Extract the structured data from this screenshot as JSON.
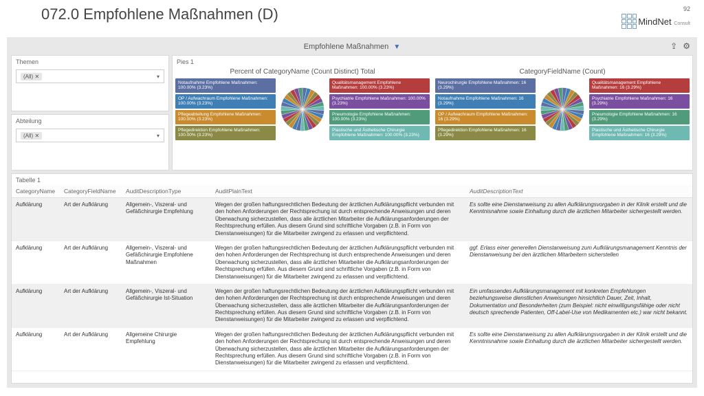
{
  "header": {
    "title": "072.0 Empfohlene Maßnahmen (D)",
    "page_number": "92",
    "logo_text": "MindNet",
    "logo_sub": "Consult"
  },
  "report": {
    "title": "Empfohlene Maßnahmen",
    "filters": {
      "themen_label": "Themen",
      "themen_value": "(All) ✕",
      "abteilung_label": "Abteilung",
      "abteilung_value": "(All) ✕"
    },
    "pies": {
      "panel_title": "Pies 1",
      "left_title": "Percent of CategoryName (Count Distinct) Total",
      "right_title": "CategoryFieldName (Count)",
      "slice_colors": [
        "#5b6fa3",
        "#3f7fb5",
        "#c98b2e",
        "#8a8a46",
        "#b53d3d",
        "#7a4fa0",
        "#4f9b7a",
        "#6fb9b3",
        "#5b6fa3",
        "#3f7fb5",
        "#c98b2e",
        "#8a8a46",
        "#b53d3d",
        "#7a4fa0",
        "#4f9b7a",
        "#6fb9b3",
        "#5b6fa3",
        "#3f7fb5",
        "#c98b2e",
        "#8a8a46",
        "#b53d3d",
        "#7a4fa0",
        "#4f9b7a",
        "#6fb9b3",
        "#5b6fa3",
        "#3f7fb5",
        "#c98b2e",
        "#8a8a46",
        "#b53d3d",
        "#7a4fa0",
        "#4f9b7a"
      ],
      "left_legend_left": [
        {
          "color": "#5b6fa3",
          "text": "Notaufnahme Empfohlene Maßnahmen: 100.00% (3.23%)"
        },
        {
          "color": "#3f7fb5",
          "text": "OP / Aufwachraum Empfohlene Maßnahmen: 100.00% (3.23%)"
        },
        {
          "color": "#c98b2e",
          "text": "Pflegeabteilung Empfohlene Maßnahmen: 100.00% (3.23%)"
        },
        {
          "color": "#8a8a46",
          "text": "Pflegedirektion Empfohlene Maßnahmen: 100.00% (3.23%)"
        }
      ],
      "left_legend_right": [
        {
          "color": "#b53d3d",
          "text": "Qualitätsmanagement Empfohlene Maßnahmen: 100.00% (3.23%)"
        },
        {
          "color": "#7a4fa0",
          "text": "Psychiatrie Empfohlene Maßnahmen: 100.00% (3.23%)"
        },
        {
          "color": "#4f9b7a",
          "text": "Pneumologie Empfohlene Maßnahmen: 100.00% (3.23%)"
        },
        {
          "color": "#6fb9b3",
          "text": "Plastische und Ästhetische Chirurgie Empfohlene Maßnahmen: 100.00% (3.23%)"
        }
      ],
      "right_legend_left": [
        {
          "color": "#5b6fa3",
          "text": "Neurochirurgie Empfohlene Maßnahmen: 16 (3.29%)"
        },
        {
          "color": "#3f7fb5",
          "text": "Notaufnahme Empfohlene Maßnahmen: 16 (3.29%)"
        },
        {
          "color": "#c98b2e",
          "text": "OP / Aufwachraum Empfohlene Maßnahmen: 16 (3.29%)"
        },
        {
          "color": "#8a8a46",
          "text": "Pflegedirektion Empfohlene Maßnahmen: 16 (3.29%)"
        }
      ],
      "right_legend_right": [
        {
          "color": "#b53d3d",
          "text": "Qualitätsmanagement Empfohlene Maßnahmen: 16 (3.29%)"
        },
        {
          "color": "#7a4fa0",
          "text": "Psychiatrie Empfohlene Maßnahmen: 16 (3.29%)"
        },
        {
          "color": "#4f9b7a",
          "text": "Pneumologie Empfohlene Maßnahmen: 16 (3.29%)"
        },
        {
          "color": "#6fb9b3",
          "text": "Plastische und Ästhetische Chirurgie Empfohlene Maßnahmen: 16 (3.29%)"
        }
      ]
    },
    "table": {
      "panel_title": "Tabelle 1",
      "columns": [
        "CategoryName",
        "CategoryFieldName",
        "AuditDescriptionType",
        "AuditPlainText",
        "AuditDescriptionText"
      ],
      "rows": [
        {
          "alt": true,
          "cat": "Aufklärung",
          "field": "Art der Aufklärung",
          "type": "Allgemein-, Viszeral- und Gefäßchirurgie Empfehlung",
          "plain": "Wegen der großen haftungsrechtlichen Bedeutung der ärztlichen Aufklärungspflicht verbunden mit den hohen Anforderungen der Rechtsprechung ist durch entsprechende Anweisungen und deren Überwachung sicherzustellen, dass alle ärztlichen Mitarbeiter die Aufklärungsanforderungen der Rechtsprechung erfüllen. Aus diesem Grund sind schriftliche Vorgaben (z.B. in Form von Dienstanweisungen) für die Mitarbeiter zwingend zu erlassen und verpflichtend.",
          "desc": "Es sollte eine Dienstanweisung zu allen Aufklärungsvorgaben in der Klinik erstellt und die Kenntnisnahme sowie Einhaltung durch die ärztlichen Mitarbeiter sichergestellt werden."
        },
        {
          "alt": false,
          "cat": "Aufklärung",
          "field": "Art der Aufklärung",
          "type": "Allgemein-, Viszeral- und Gefäßchirurgie Empfohlene Maßnahmen",
          "plain": "Wegen der großen haftungsrechtlichen Bedeutung der ärztlichen Aufklärungspflicht verbunden mit den hohen Anforderungen der Rechtsprechung ist durch entsprechende Anweisungen und deren Überwachung sicherzustellen, dass alle ärztlichen Mitarbeiter die Aufklärungsanforderungen der Rechtsprechung erfüllen. Aus diesem Grund sind schriftliche Vorgaben (z.B. in Form von Dienstanweisungen) für die Mitarbeiter zwingend zu erlassen und verpflichtend.",
          "desc": "ggf. Erlass einer generellen Dienstanweisung zum Aufklärungsmanagement Kenntnis der Dienstanweisung bei den ärztlichen Mitarbeitern sicherstellen"
        },
        {
          "alt": true,
          "cat": "Aufklärung",
          "field": "Art der Aufklärung",
          "type": "Allgemein-, Viszeral- und Gefäßchirurgie Ist-Situation",
          "plain": "Wegen der großen haftungsrechtlichen Bedeutung der ärztlichen Aufklärungspflicht verbunden mit den hohen Anforderungen der Rechtsprechung ist durch entsprechende Anweisungen und deren Überwachung sicherzustellen, dass alle ärztlichen Mitarbeiter die Aufklärungsanforderungen der Rechtsprechung erfüllen. Aus diesem Grund sind schriftliche Vorgaben (z.B. in Form von Dienstanweisungen) für die Mitarbeiter zwingend zu erlassen und verpflichtend.",
          "desc": "Ein umfassendes Aufklärungsmanagement mit konkreten Empfehlungen beziehungsweise dienstlichen Anweisungen hinsichtlich Dauer, Zeit, Inhalt, Dokumentation und Besonderheiten (zum Beispiel: nicht einwilligungsfähige oder nicht deutsch sprechende Patienten, Off-Label-Use von Medikamenten etc.) war nicht bekannt."
        },
        {
          "alt": false,
          "cat": "Aufklärung",
          "field": "Art der Aufklärung",
          "type": "Allgemeine Chirurgie Empfehlung",
          "plain": "Wegen der großen haftungsrechtlichen Bedeutung der ärztlichen Aufklärungspflicht verbunden mit den hohen Anforderungen der Rechtsprechung ist durch entsprechende Anweisungen und deren Überwachung sicherzustellen, dass alle ärztlichen Mitarbeiter die Aufklärungsanforderungen der Rechtsprechung erfüllen. Aus diesem Grund sind schriftliche Vorgaben (z.B. in Form von Dienstanweisungen) für die Mitarbeiter zwingend zu erlassen und verpflichtend.",
          "desc": "Es sollte eine Dienstanweisung zu allen Aufklärungsvorgaben in der Klinik erstellt und die Kenntnisnahme sowie Einhaltung durch die ärztlichen Mitarbeiter sichergestellt werden."
        }
      ]
    }
  }
}
